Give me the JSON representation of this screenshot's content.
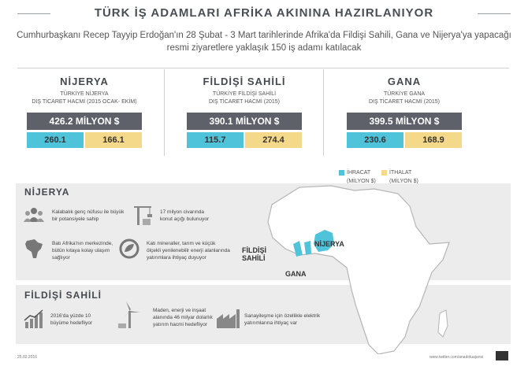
{
  "title": "TÜRK İŞ ADAMLARI AFRİKA AKININA HAZIRLANIYOR",
  "subtitle": "Cumhurbaşkanı Recep Tayyip Erdoğan'ın 28 Şubat - 3 Mart tarihlerinde Afrika'da Fildişi Sahili, Gana ve Nijerya'ya yapacağı resmi ziyaretlere yaklaşık 150 iş adamı katılacak",
  "countries": [
    {
      "name": "NİJERYA",
      "desc_line1": "TÜRKİYE NİJERYA",
      "desc_line2": "DIŞ TİCARET HACMİ (2015 OCAK- EKİM)",
      "total": "426.2 MİLYON $",
      "export": "260.1",
      "import": "166.1"
    },
    {
      "name": "FİLDİŞİ SAHİLİ",
      "desc_line1": "TÜRKİYE FİLDİŞİ SAHİLİ",
      "desc_line2": "DIŞ TİCARET HACMİ (2015)",
      "total": "390.1 MİLYON $",
      "export": "115.7",
      "import": "274.4"
    },
    {
      "name": "GANA",
      "desc_line1": "TÜRKİYE GANA",
      "desc_line2": "DIŞ TİCARET HACMİ (2015)",
      "total": "399.5 MİLYON $",
      "export": "230.6",
      "import": "168.9"
    }
  ],
  "legend": {
    "export_label": "İHRACAT",
    "export_unit": "(MİLYON $)",
    "import_label": "İTHALAT",
    "import_unit": "(MİLYON $)",
    "export_color": "#4fc3d9",
    "import_color": "#f5d98a"
  },
  "nigeria": {
    "title": "NİJERYA",
    "facts": [
      {
        "icon": "people-icon",
        "line1": "Kalabalık genç nüfusu ile büyük",
        "line2": "bir potansiyele sahip",
        "line3": ""
      },
      {
        "icon": "crane-icon",
        "line1": "17 milyon civarında",
        "line2": "konut açığı bulunuyor",
        "line3": ""
      },
      {
        "icon": "africa-map-icon",
        "line1": "Batı Afrika'nın merkezinde,",
        "line2": "bütün kıtaya kolay ulaşım",
        "line3": "sağlıyor"
      },
      {
        "icon": "recycle-leaf-icon",
        "line1": "Katı mineraller, tarım ve küçük",
        "line2": "ölçekli yenilenebilir enerji alanlarında",
        "line3": "yatırımlara ihtiyaç duyuyor"
      }
    ]
  },
  "ivory_coast": {
    "title": "FİLDİŞİ SAHİLİ",
    "facts": [
      {
        "icon": "growth-chart-icon",
        "line1": "2016'da yüzde 10",
        "line2": "büyüme hedefliyor",
        "line3": ""
      },
      {
        "icon": "wind-turbine-icon",
        "line1": "Maden, enerji ve inşaat",
        "line2": "alanında 46 milyar dolarlık",
        "line3": "yatırım hacmi hedefliyor"
      },
      {
        "icon": "factory-icon",
        "line1": "Sanayileşme için özellikle elektrik",
        "line2": "yatırımlarına ihtiyaç var",
        "line3": ""
      }
    ]
  },
  "map_labels": {
    "ivory_coast_1": "FİLDİŞİ",
    "ivory_coast_2": "SAHİLİ",
    "ghana": "GANA",
    "nigeria": "NİJERYA"
  },
  "footer": {
    "date": "25.02.2016",
    "url": "www.twitter.com/anadoluajansi"
  }
}
